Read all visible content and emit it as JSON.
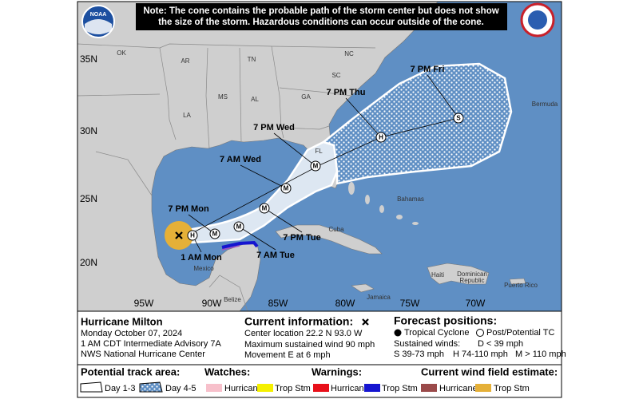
{
  "note": [
    "Note: The cone contains the probable path of the storm center but does not show",
    "the size of the storm. Hazardous conditions can occur outside of the cone."
  ],
  "logo": "NOAA",
  "map": {
    "lat_labels": [
      "35N",
      "30N",
      "25N",
      "20N"
    ],
    "lon_labels": [
      "95W",
      "90W",
      "85W",
      "80W",
      "75W",
      "70W"
    ],
    "place_labels": [
      "OK",
      "AR",
      "TN",
      "NC",
      "SC",
      "MS",
      "AL",
      "GA",
      "LA",
      "FL",
      "Bermuda",
      "Bahamas",
      "Cuba",
      "Mexico",
      "Belize",
      "Jamaica",
      "Haiti",
      "Dominican",
      "Republic",
      "Puerto Rico"
    ]
  },
  "forecast": {
    "points": [
      {
        "label": "1 AM Mon",
        "symbol": "H"
      },
      {
        "label": "7 PM Mon",
        "symbol": "M"
      },
      {
        "label": "7 AM Tue",
        "symbol": "M"
      },
      {
        "label": "7 PM Tue",
        "symbol": "M"
      },
      {
        "label": "7 AM Wed",
        "symbol": "M"
      },
      {
        "label": "7 PM Wed",
        "symbol": "M"
      },
      {
        "label": "7 PM Thu",
        "symbol": "H"
      },
      {
        "label": "7 PM Fri",
        "symbol": "S"
      }
    ]
  },
  "info": {
    "storm": {
      "name": "Hurricane Milton",
      "date": "Monday October 07, 2024",
      "advisory": "1 AM CDT Intermediate Advisory 7A",
      "center": "NWS National Hurricane Center"
    },
    "current": {
      "title": "Current information:",
      "lines": [
        "Center location 22.2 N 93.0 W",
        "Maximum sustained wind 90 mph",
        "Movement E at 6 mph"
      ]
    },
    "forecast_key": {
      "title": "Forecast positions:",
      "tropical": "Tropical Cyclone",
      "post": "Post/Potential TC",
      "winds_title": "Sustained winds:",
      "d": "D < 39 mph",
      "s": "S 39-73 mph",
      "h": "H 74-110 mph",
      "m": "M > 110 mph"
    }
  },
  "legend": {
    "track": {
      "title": "Potential track area:",
      "day13": "Day 1-3",
      "day45": "Day 4-5"
    },
    "watches": {
      "title": "Watches:",
      "hurricane": "Hurricane",
      "trop": "Trop Stm"
    },
    "warnings": {
      "title": "Warnings:",
      "hurricane": "Hurricane",
      "trop": "Trop Stm"
    },
    "wind": {
      "title": "Current wind field estimate:",
      "hurricane": "Hurricane",
      "trop": "Trop Stm"
    }
  }
}
